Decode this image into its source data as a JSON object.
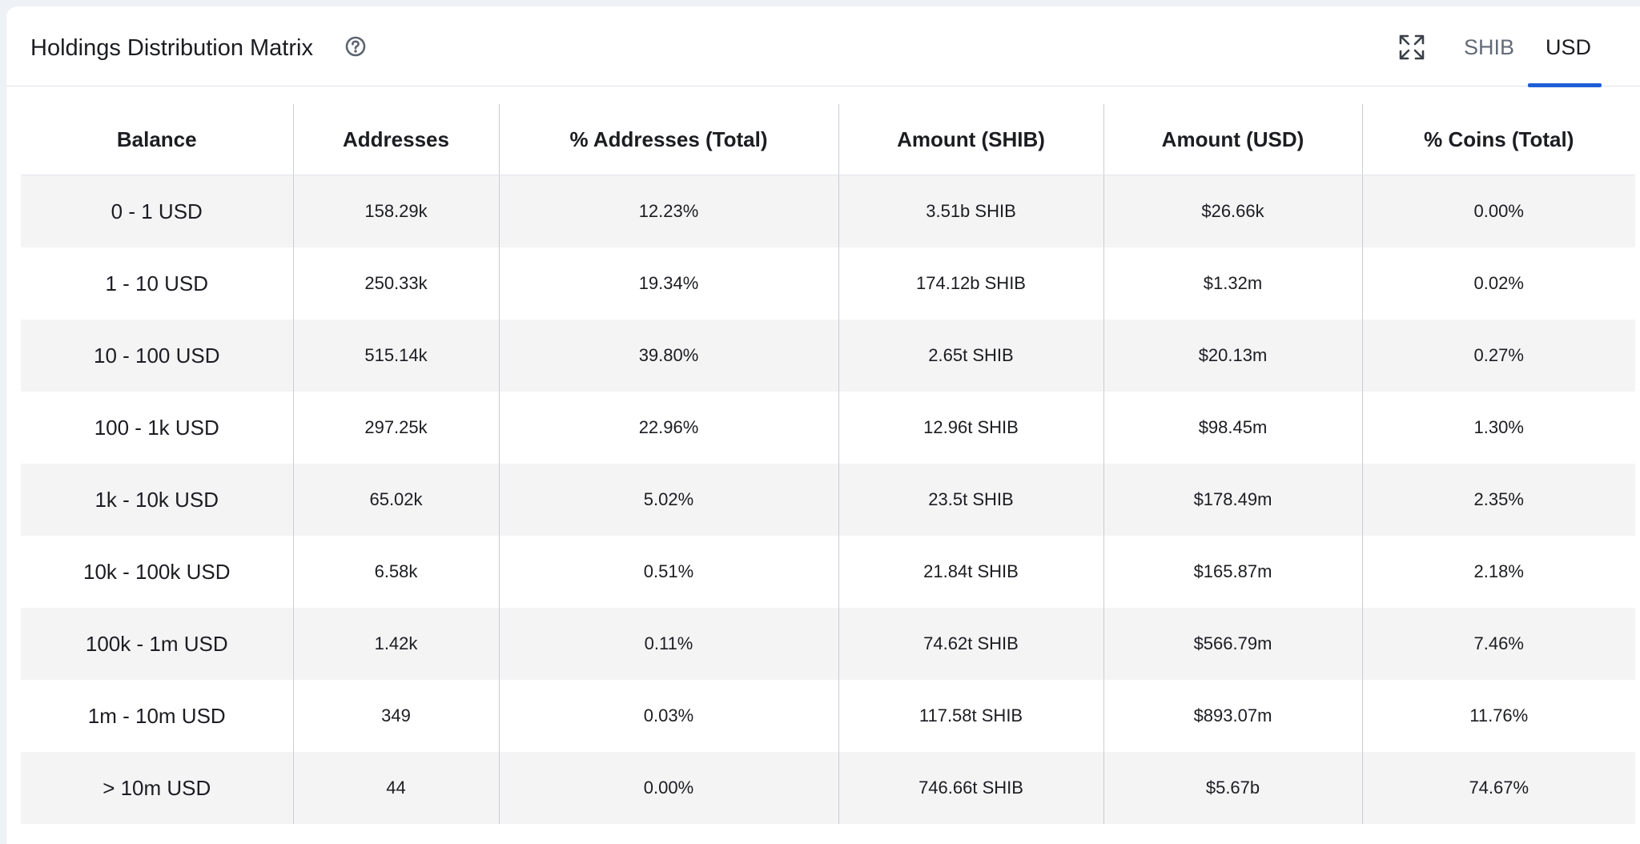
{
  "header": {
    "title": "Holdings Distribution Matrix",
    "tabs": [
      {
        "label": "SHIB",
        "selected": false
      },
      {
        "label": "USD",
        "selected": true
      }
    ]
  },
  "colors": {
    "accent": "#1f5fd6",
    "stripe": "#f4f4f5"
  },
  "icons": {
    "help": "help-circle-icon",
    "expand": "expand-icon"
  },
  "table": {
    "columns": [
      "Balance",
      "Addresses",
      "% Addresses (Total)",
      "Amount (SHIB)",
      "Amount (USD)",
      "% Coins (Total)"
    ],
    "rows": [
      [
        "0 - 1 USD",
        "158.29k",
        "12.23%",
        "3.51b SHIB",
        "$26.66k",
        "0.00%"
      ],
      [
        "1 - 10 USD",
        "250.33k",
        "19.34%",
        "174.12b SHIB",
        "$1.32m",
        "0.02%"
      ],
      [
        "10 - 100 USD",
        "515.14k",
        "39.80%",
        "2.65t SHIB",
        "$20.13m",
        "0.27%"
      ],
      [
        "100 - 1k USD",
        "297.25k",
        "22.96%",
        "12.96t SHIB",
        "$98.45m",
        "1.30%"
      ],
      [
        "1k - 10k USD",
        "65.02k",
        "5.02%",
        "23.5t SHIB",
        "$178.49m",
        "2.35%"
      ],
      [
        "10k - 100k USD",
        "6.58k",
        "0.51%",
        "21.84t SHIB",
        "$165.87m",
        "2.18%"
      ],
      [
        "100k - 1m USD",
        "1.42k",
        "0.11%",
        "74.62t SHIB",
        "$566.79m",
        "7.46%"
      ],
      [
        "1m - 10m USD",
        "349",
        "0.03%",
        "117.58t SHIB",
        "$893.07m",
        "11.76%"
      ],
      [
        "> 10m USD",
        "44",
        "0.00%",
        "746.66t SHIB",
        "$5.67b",
        "74.67%"
      ]
    ]
  }
}
